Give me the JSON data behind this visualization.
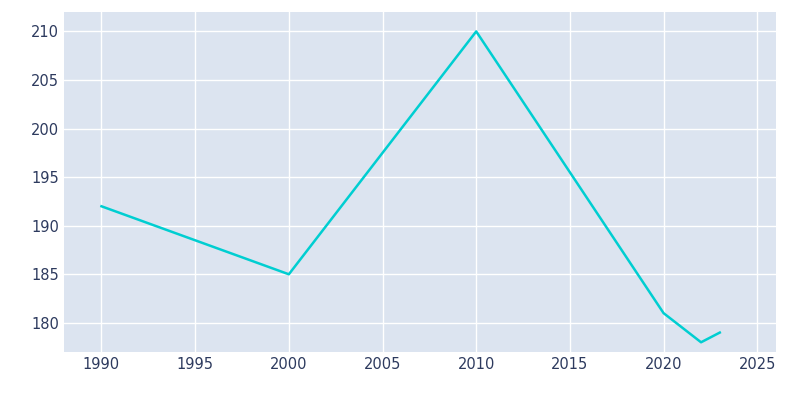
{
  "years": [
    1990,
    2000,
    2010,
    2020,
    2022,
    2023
  ],
  "population": [
    192,
    185,
    210,
    181,
    178,
    179
  ],
  "line_color": "#00CED1",
  "bg_color": "#FFFFFF",
  "plot_bg_color": "#DCE4F0",
  "grid_color": "#FFFFFF",
  "tick_label_color": "#2D3A5E",
  "xlim": [
    1988,
    2026
  ],
  "ylim": [
    177,
    212
  ],
  "xticks": [
    1990,
    1995,
    2000,
    2005,
    2010,
    2015,
    2020,
    2025
  ],
  "yticks": [
    180,
    185,
    190,
    195,
    200,
    205,
    210
  ],
  "line_width": 1.8
}
